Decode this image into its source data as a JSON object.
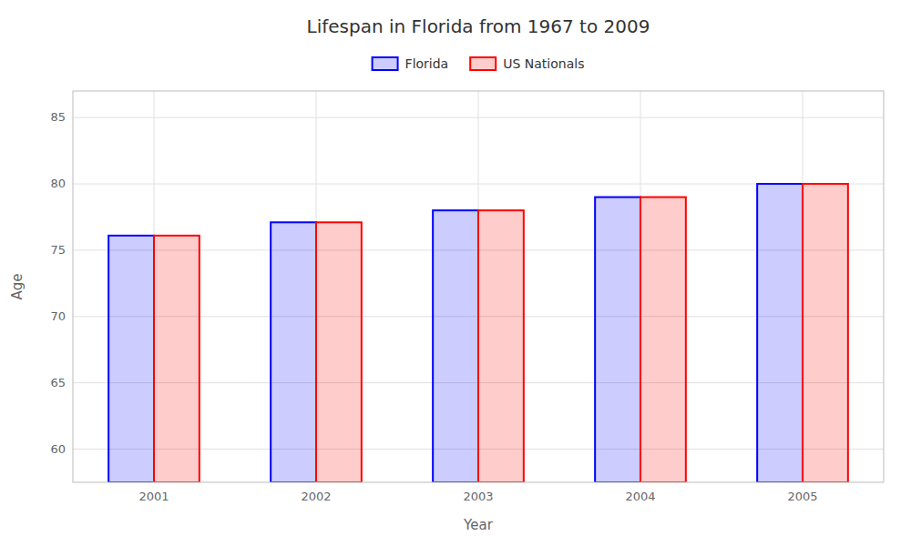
{
  "chart_data": {
    "type": "bar",
    "title": "Lifespan in Florida from 1967 to 2009",
    "x_label": "Year",
    "y_label": "Age",
    "categories": [
      "2001",
      "2002",
      "2003",
      "2004",
      "2005"
    ],
    "series": [
      {
        "name": "Florida",
        "color": "#0000ff",
        "values": [
          76.1,
          77.1,
          78.0,
          79.0,
          80.0
        ]
      },
      {
        "name": "US Nationals",
        "color": "#ff0000",
        "values": [
          76.1,
          77.1,
          78.0,
          79.0,
          80.0
        ]
      }
    ],
    "ylim": [
      57.5,
      87
    ],
    "yticks": [
      60,
      65,
      70,
      75,
      80,
      85
    ],
    "grid": true,
    "legend": "top"
  }
}
